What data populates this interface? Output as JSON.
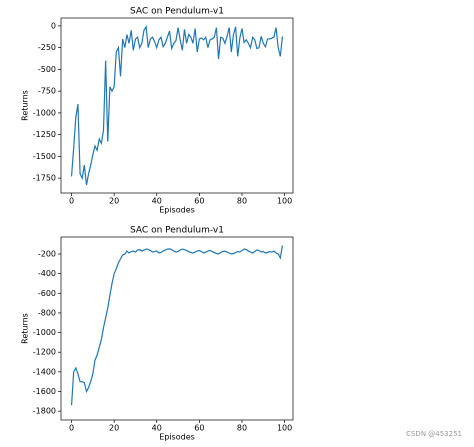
{
  "chart_data": [
    {
      "type": "line",
      "title": "SAC on Pendulum-v1",
      "x_label": "Episodes",
      "y_label": "Returns",
      "xlim": [
        -4.95,
        103.95
      ],
      "ylim": [
        -1921,
        91
      ],
      "xticks": [
        0,
        20,
        40,
        60,
        80,
        100
      ],
      "yticks": [
        -1750,
        -1500,
        -1250,
        -1000,
        -750,
        -500,
        -250,
        0
      ],
      "series": [
        {
          "name": "Returns",
          "color": "#1f77b4",
          "values": [
            -1730,
            -1400,
            -1050,
            -900,
            -1700,
            -1750,
            -1600,
            -1830,
            -1700,
            -1600,
            -1480,
            -1380,
            -1430,
            -1300,
            -1350,
            -1200,
            -400,
            -1330,
            -700,
            -750,
            -700,
            -300,
            -250,
            -580,
            -150,
            -250,
            -100,
            -200,
            -50,
            -280,
            -150,
            -130,
            -250,
            -200,
            -50,
            -10,
            -250,
            -150,
            -130,
            -180,
            -250,
            -160,
            -130,
            -240,
            -200,
            -130,
            -60,
            -260,
            -200,
            -170,
            -20,
            -160,
            -280,
            -40,
            -200,
            -100,
            -130,
            -200,
            -30,
            -300,
            -150,
            -140,
            -160,
            -130,
            -250,
            -160,
            -150,
            -130,
            -20,
            -380,
            -130,
            -140,
            -200,
            -120,
            -20,
            -300,
            -100,
            -10,
            -350,
            -140,
            -30,
            -190,
            -160,
            -200,
            -250,
            -130,
            -160,
            -260,
            -250,
            -120,
            -200,
            -240,
            -150,
            -150,
            -140,
            -130,
            -20,
            -250,
            -350,
            -120
          ]
        }
      ]
    },
    {
      "type": "line",
      "title": "SAC on Pendulum-v1",
      "x_label": "Episodes",
      "y_label": "Returns",
      "xlim": [
        -4.95,
        103.95
      ],
      "ylim": [
        -1890,
        -27
      ],
      "xticks": [
        0,
        20,
        40,
        60,
        80,
        100
      ],
      "yticks": [
        -1800,
        -1600,
        -1400,
        -1200,
        -1000,
        -800,
        -600,
        -400,
        -200
      ],
      "series": [
        {
          "name": "Returns",
          "color": "#1f77b4",
          "values": [
            -1740,
            -1400,
            -1360,
            -1420,
            -1500,
            -1500,
            -1510,
            -1600,
            -1560,
            -1500,
            -1420,
            -1280,
            -1230,
            -1150,
            -1070,
            -950,
            -850,
            -750,
            -620,
            -500,
            -400,
            -350,
            -290,
            -250,
            -210,
            -200,
            -170,
            -190,
            -175,
            -170,
            -180,
            -160,
            -155,
            -170,
            -160,
            -150,
            -152,
            -165,
            -180,
            -175,
            -170,
            -190,
            -185,
            -170,
            -160,
            -150,
            -148,
            -155,
            -170,
            -180,
            -175,
            -160,
            -150,
            -155,
            -165,
            -175,
            -185,
            -190,
            -180,
            -170,
            -165,
            -175,
            -190,
            -180,
            -170,
            -165,
            -175,
            -185,
            -195,
            -200,
            -185,
            -175,
            -170,
            -180,
            -190,
            -200,
            -195,
            -185,
            -175,
            -180,
            -165,
            -150,
            -155,
            -170,
            -180,
            -190,
            -175,
            -160,
            -165,
            -180,
            -175,
            -190,
            -185,
            -175,
            -180,
            -170,
            -190,
            -200,
            -240,
            -115
          ]
        }
      ]
    }
  ],
  "watermark": "CSDN @453251"
}
